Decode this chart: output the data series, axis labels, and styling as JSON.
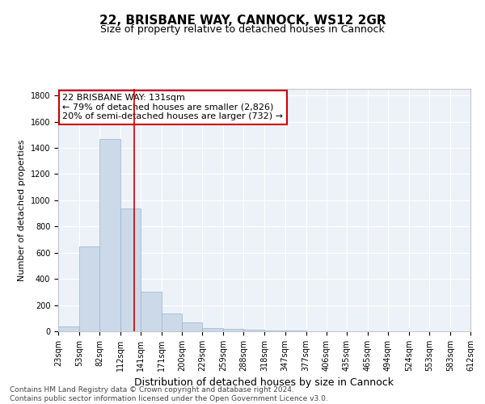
{
  "title": "22, BRISBANE WAY, CANNOCK, WS12 2GR",
  "subtitle": "Size of property relative to detached houses in Cannock",
  "xlabel": "Distribution of detached houses by size in Cannock",
  "ylabel": "Number of detached properties",
  "bar_edges": [
    23,
    53,
    82,
    112,
    141,
    171,
    200,
    229,
    259,
    288,
    318,
    347,
    377,
    406,
    435,
    465,
    494,
    524,
    553,
    583,
    612
  ],
  "bar_heights": [
    38,
    650,
    1468,
    935,
    300,
    135,
    65,
    25,
    18,
    12,
    8,
    5,
    3,
    2,
    2,
    2,
    1,
    1,
    1,
    1
  ],
  "bar_color": "#ccd9e8",
  "bar_edgecolor": "#9ab4cc",
  "vline_x": 131,
  "vline_color": "#cc0000",
  "annotation_text": "22 BRISBANE WAY: 131sqm\n← 79% of detached houses are smaller (2,826)\n20% of semi-detached houses are larger (732) →",
  "annotation_box_facecolor": "#ffffff",
  "annotation_box_edgecolor": "#cc0000",
  "ylim": [
    0,
    1850
  ],
  "yticks": [
    0,
    200,
    400,
    600,
    800,
    1000,
    1200,
    1400,
    1600,
    1800
  ],
  "footer_line1": "Contains HM Land Registry data © Crown copyright and database right 2024.",
  "footer_line2": "Contains public sector information licensed under the Open Government Licence v3.0.",
  "axes_bg_color": "#edf2f8",
  "title_fontsize": 11,
  "subtitle_fontsize": 9,
  "tick_label_fontsize": 7,
  "ylabel_fontsize": 8,
  "xlabel_fontsize": 9,
  "annotation_fontsize": 8
}
